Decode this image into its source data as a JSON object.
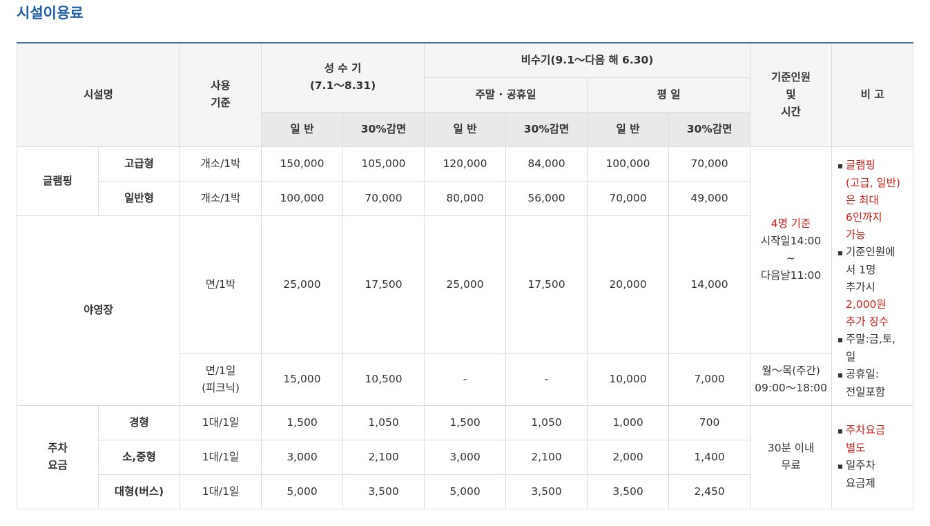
{
  "title": "시설이용료",
  "header": {
    "facility": "시설명",
    "usage_basis": [
      "사용",
      "기준"
    ],
    "peak": [
      "성 수 기",
      "(7.1～8.31)"
    ],
    "offpeak": "비수기(9.1～다음 해 6.30)",
    "weekend": "주말 · 공휴일",
    "weekday": "평 일",
    "general": "일 반",
    "discount": "30%감면",
    "capacity": [
      "기준인원",
      "및",
      "시간"
    ],
    "remarks": "비 고"
  },
  "glamping": {
    "label": "글램핑",
    "rows": [
      {
        "type": "고급형",
        "basis": "개소/1박",
        "values": [
          "150,000",
          "105,000",
          "120,000",
          "84,000",
          "100,000",
          "70,000"
        ]
      },
      {
        "type": "일반형",
        "basis": "개소/1박",
        "values": [
          "100,000",
          "70,000",
          "80,000",
          "56,000",
          "70,000",
          "49,000"
        ]
      }
    ]
  },
  "camping": {
    "label": "야영장",
    "rows": [
      {
        "basis": [
          "면/1박"
        ],
        "values": [
          "25,000",
          "17,500",
          "25,000",
          "17,500",
          "20,000",
          "14,000"
        ]
      },
      {
        "basis": [
          "면/1일",
          "(피크닉)"
        ],
        "values": [
          "15,000",
          "10,500",
          "-",
          "-",
          "10,000",
          "7,000"
        ]
      }
    ]
  },
  "stay_capacity": {
    "people": "4명 기준",
    "start": "시작일14:00",
    "tilde": "~",
    "end": "다음날11:00"
  },
  "picnic_time": [
    "월～목(주간)",
    "09:00～18:00"
  ],
  "stay_notes": [
    {
      "parts": [
        {
          "text": "글램핑",
          "red": true
        },
        {
          "text": "(고급, 일반)",
          "red": true
        },
        {
          "text": "은 최대",
          "red": true
        },
        {
          "text": "6인까지",
          "red": true
        },
        {
          "text": "가능",
          "red": true
        }
      ]
    },
    {
      "parts": [
        {
          "text": "기준인원에",
          "red": false
        },
        {
          "text": "서 1명",
          "red": false
        },
        {
          "text": "추가시",
          "red": false
        },
        {
          "text": "2,000원",
          "red": true
        },
        {
          "text": "추가 징수",
          "red": true
        }
      ]
    },
    {
      "parts": [
        {
          "text": "주말:금,토,",
          "red": false
        },
        {
          "text": "일",
          "red": false
        }
      ]
    },
    {
      "parts": [
        {
          "text": "공휴일:",
          "red": false
        },
        {
          "text": "전일포함",
          "red": false
        }
      ]
    }
  ],
  "parking": {
    "label": [
      "주차",
      "요금"
    ],
    "rows": [
      {
        "type": "경형",
        "basis": "1대/1일",
        "values": [
          "1,500",
          "1,050",
          "1,500",
          "1,050",
          "1,000",
          "700"
        ]
      },
      {
        "type": "소,중형",
        "basis": "1대/1일",
        "values": [
          "3,000",
          "2,100",
          "3,000",
          "2,100",
          "2,000",
          "1,400"
        ]
      },
      {
        "type": "대형(버스)",
        "basis": "1대/1일",
        "values": [
          "5,000",
          "3,500",
          "5,000",
          "3,500",
          "3,500",
          "2,450"
        ]
      }
    ],
    "free_time": [
      "30분 이내",
      "무료"
    ],
    "notes": [
      {
        "parts": [
          {
            "text": "주차요금",
            "red": true
          },
          {
            "text": "별도",
            "red": true
          }
        ]
      },
      {
        "parts": [
          {
            "text": "일주차",
            "red": false
          },
          {
            "text": "요금제",
            "red": false
          }
        ]
      }
    ]
  },
  "bullet_char": "▪"
}
